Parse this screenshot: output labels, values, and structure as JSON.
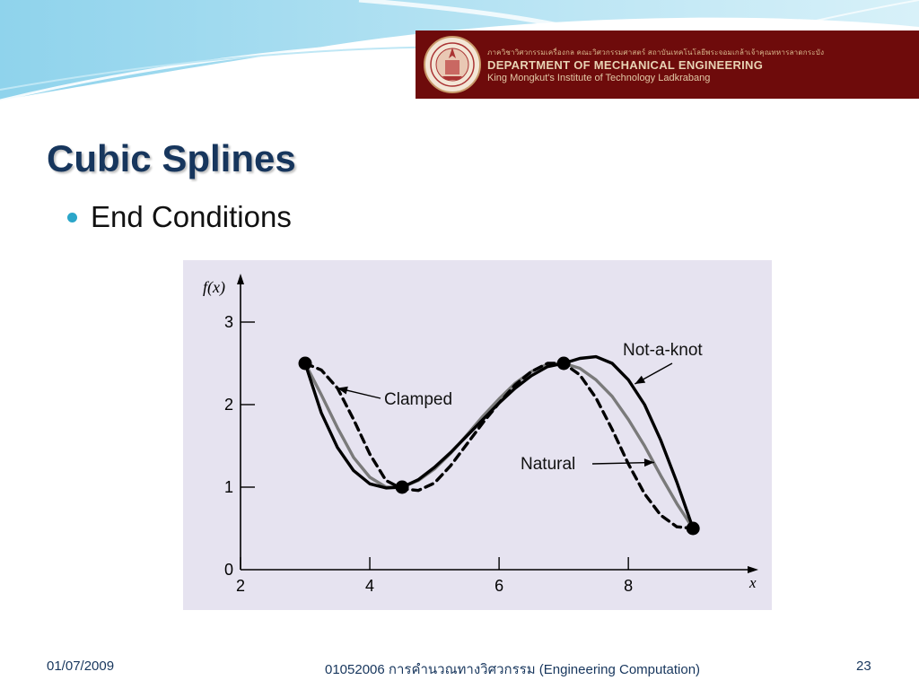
{
  "header": {
    "department_thai": "ภาควิชาวิศวกรรมเครื่องกล คณะวิศวกรรมศาสตร์ สถาบันเทคโนโลยีพระจอมเกล้าเจ้าคุณทหารลาดกระบัง",
    "department": "DEPARTMENT OF MECHANICAL ENGINEERING",
    "institute": "King Mongkut's Institute of Technology Ladkrabang",
    "banner_color": "#6e0b0b"
  },
  "slide": {
    "title": "Cubic Splines",
    "bullet": "End Conditions"
  },
  "chart_data": {
    "type": "line",
    "xlabel": "x",
    "ylabel": "f(x)",
    "xlim": [
      2,
      9.9
    ],
    "ylim": [
      0,
      3.5
    ],
    "x_ticks": [
      2,
      4,
      6,
      8
    ],
    "y_ticks": [
      0,
      1,
      2,
      3
    ],
    "knots": [
      [
        3,
        2.5
      ],
      [
        4.5,
        1
      ],
      [
        7,
        2.5
      ],
      [
        9,
        0.5
      ]
    ],
    "series": [
      {
        "name": "Not-a-knot",
        "style": "solid",
        "color": "#000000",
        "points": [
          [
            3,
            2.5
          ],
          [
            3.25,
            1.9
          ],
          [
            3.5,
            1.48
          ],
          [
            3.75,
            1.2
          ],
          [
            4,
            1.04
          ],
          [
            4.25,
            0.99
          ],
          [
            4.5,
            1.0
          ],
          [
            4.75,
            1.09
          ],
          [
            5,
            1.24
          ],
          [
            5.25,
            1.42
          ],
          [
            5.5,
            1.62
          ],
          [
            5.75,
            1.82
          ],
          [
            6,
            2.02
          ],
          [
            6.25,
            2.2
          ],
          [
            6.5,
            2.35
          ],
          [
            6.75,
            2.46
          ],
          [
            7,
            2.5
          ],
          [
            7.25,
            2.56
          ],
          [
            7.5,
            2.58
          ],
          [
            7.75,
            2.5
          ],
          [
            8,
            2.3
          ],
          [
            8.25,
            2.0
          ],
          [
            8.5,
            1.57
          ],
          [
            8.75,
            1.06
          ],
          [
            9,
            0.5
          ]
        ]
      },
      {
        "name": "Natural",
        "style": "solid",
        "color": "#7a7a7a",
        "points": [
          [
            3,
            2.5
          ],
          [
            3.25,
            2.12
          ],
          [
            3.5,
            1.72
          ],
          [
            3.75,
            1.36
          ],
          [
            4,
            1.12
          ],
          [
            4.25,
            1.0
          ],
          [
            4.5,
            1.0
          ],
          [
            4.75,
            1.08
          ],
          [
            5,
            1.22
          ],
          [
            5.25,
            1.41
          ],
          [
            5.5,
            1.63
          ],
          [
            5.75,
            1.86
          ],
          [
            6,
            2.07
          ],
          [
            6.25,
            2.26
          ],
          [
            6.5,
            2.4
          ],
          [
            6.75,
            2.49
          ],
          [
            7,
            2.5
          ],
          [
            7.25,
            2.44
          ],
          [
            7.5,
            2.3
          ],
          [
            7.75,
            2.1
          ],
          [
            8,
            1.82
          ],
          [
            8.25,
            1.5
          ],
          [
            8.5,
            1.14
          ],
          [
            8.75,
            0.8
          ],
          [
            9,
            0.5
          ]
        ]
      },
      {
        "name": "Clamped",
        "style": "dashed",
        "color": "#000000",
        "points": [
          [
            3,
            2.5
          ],
          [
            3.25,
            2.42
          ],
          [
            3.5,
            2.2
          ],
          [
            3.75,
            1.82
          ],
          [
            4,
            1.4
          ],
          [
            4.25,
            1.08
          ],
          [
            4.5,
            0.98
          ],
          [
            4.75,
            0.96
          ],
          [
            5,
            1.05
          ],
          [
            5.25,
            1.26
          ],
          [
            5.5,
            1.52
          ],
          [
            5.75,
            1.78
          ],
          [
            6,
            2.02
          ],
          [
            6.25,
            2.24
          ],
          [
            6.5,
            2.4
          ],
          [
            6.75,
            2.5
          ],
          [
            7,
            2.5
          ],
          [
            7.25,
            2.36
          ],
          [
            7.5,
            2.08
          ],
          [
            7.75,
            1.7
          ],
          [
            8,
            1.28
          ],
          [
            8.25,
            0.92
          ],
          [
            8.5,
            0.66
          ],
          [
            8.75,
            0.52
          ],
          [
            9,
            0.5
          ]
        ]
      }
    ],
    "annotations": [
      {
        "text": "Clamped",
        "arrow_to": [
          3.5,
          2.2
        ]
      },
      {
        "text": "Natural",
        "arrow_to": [
          8.4,
          1.3
        ]
      },
      {
        "text": "Not-a-knot",
        "arrow_to": [
          8.1,
          2.25
        ]
      }
    ]
  },
  "footer": {
    "date": "01/07/2009",
    "course": "01052006 การคำนวณทางวิศวกรรม (Engineering Computation)",
    "page": "23"
  }
}
